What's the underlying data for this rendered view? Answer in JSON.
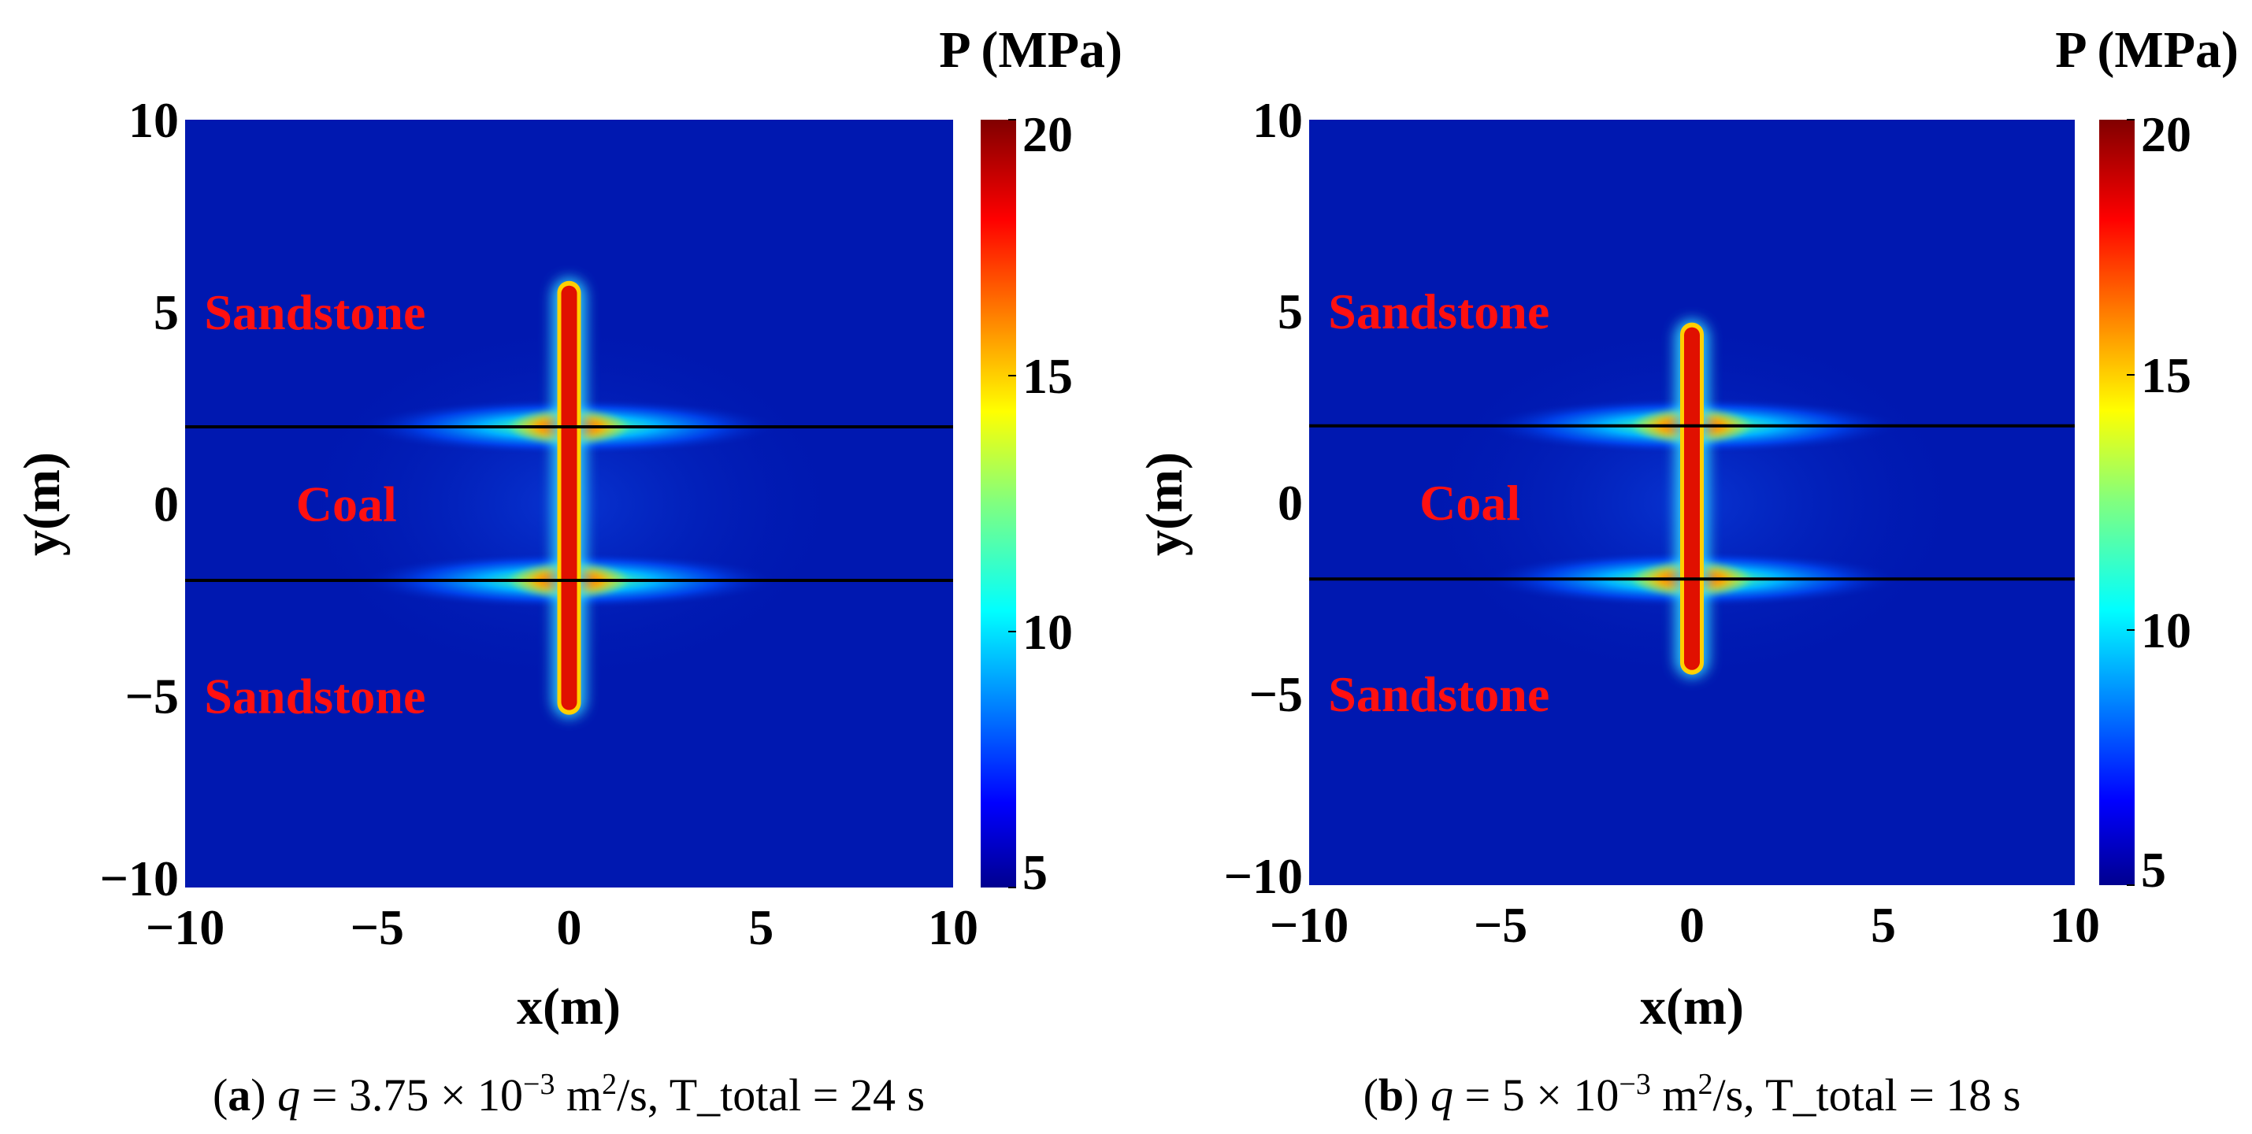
{
  "chart_data": [
    {
      "type": "heatmap",
      "panel_id": "a",
      "caption": {
        "letter": "a",
        "q_symbol": "q",
        "q_text": "= 3.75 × 10",
        "exponent": "−3",
        "unit_text": "m",
        "unit_exp": "2",
        "unit_tail": "/s, T_total = 24 s"
      },
      "xlabel": "x(m)",
      "ylabel": "y(m)",
      "xlim": [
        -10,
        10
      ],
      "ylim": [
        -10,
        10
      ],
      "x_ticks": [
        "−10",
        "−5",
        "0",
        "5",
        "10"
      ],
      "y_ticks": [
        "10",
        "5",
        "0",
        "−5",
        "−10"
      ],
      "colorbar": {
        "title": "P (MPa)",
        "range": [
          5,
          20
        ],
        "ticks": [
          "20",
          "15",
          "10",
          "5"
        ]
      },
      "regions": [
        {
          "name": "Sandstone",
          "x": -6,
          "y": 5
        },
        {
          "name": "Coal",
          "x": -6,
          "y": 0
        },
        {
          "name": "Sandstone",
          "x": -6,
          "y": -5
        }
      ],
      "interfaces_y": [
        2,
        -2
      ],
      "fracture": {
        "x": 0,
        "y_top": 5.8,
        "y_bottom": -5.5,
        "max_pressure": 20
      },
      "colors": {
        "background": "#0018b0",
        "low": "#00008f",
        "high": "#800000"
      }
    },
    {
      "type": "heatmap",
      "panel_id": "b",
      "caption": {
        "letter": "b",
        "q_symbol": "q",
        "q_text": "= 5 × 10",
        "exponent": "−3",
        "unit_text": "m",
        "unit_exp": "2",
        "unit_tail": "/s, T_total = 18 s"
      },
      "xlabel": "x(m)",
      "ylabel": "y(m)",
      "xlim": [
        -10,
        10
      ],
      "ylim": [
        -10,
        10
      ],
      "x_ticks": [
        "−10",
        "−5",
        "0",
        "5",
        "10"
      ],
      "y_ticks": [
        "10",
        "5",
        "0",
        "−5",
        "−10"
      ],
      "colorbar": {
        "title": "P (MPa)",
        "range": [
          5,
          20
        ],
        "ticks": [
          "20",
          "15",
          "10",
          "5"
        ]
      },
      "regions": [
        {
          "name": "Sandstone",
          "x": -6,
          "y": 5
        },
        {
          "name": "Coal",
          "x": -6,
          "y": 0
        },
        {
          "name": "Sandstone",
          "x": -6,
          "y": -5
        }
      ],
      "interfaces_y": [
        2,
        -2
      ],
      "fracture": {
        "x": 0,
        "y_top": 4.7,
        "y_bottom": -4.5,
        "max_pressure": 20
      },
      "colors": {
        "background": "#0018b0",
        "low": "#00008f",
        "high": "#800000"
      }
    }
  ]
}
